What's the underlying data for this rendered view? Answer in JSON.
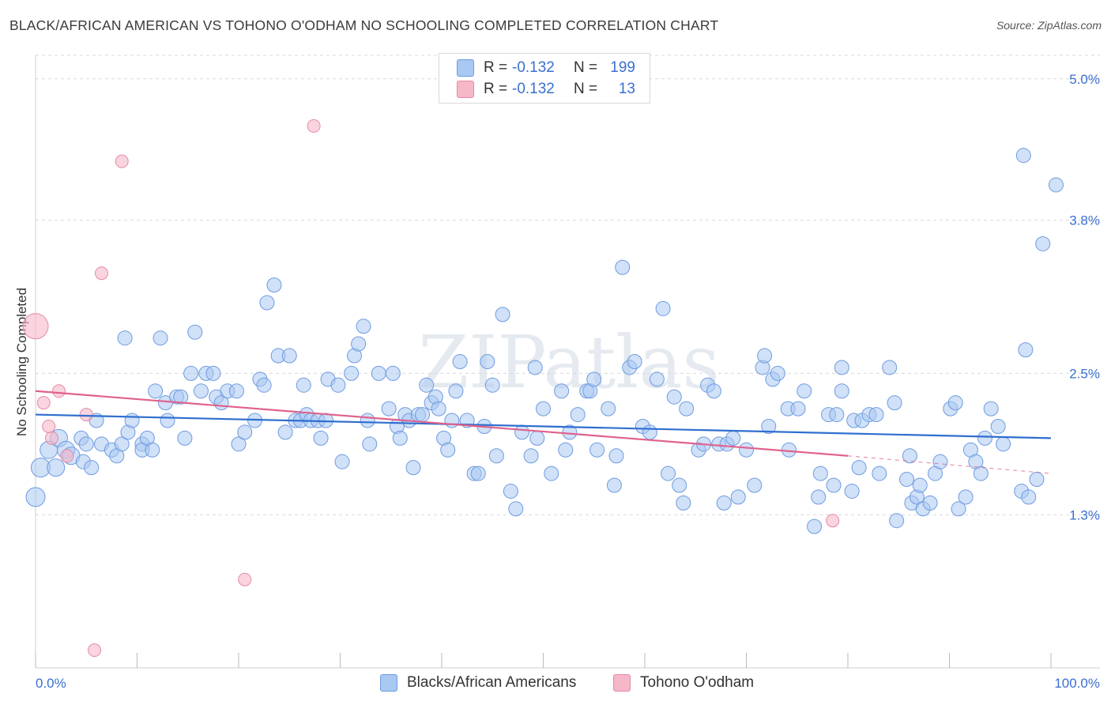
{
  "title": "BLACK/AFRICAN AMERICAN VS TOHONO O'ODHAM NO SCHOOLING COMPLETED CORRELATION CHART",
  "source": "Source: ZipAtlas.com",
  "watermark": "ZIPatlas",
  "legend": {
    "rows": [
      {
        "r_label": "R =",
        "r_value": "-0.132",
        "n_label": "N =",
        "n_value": "199",
        "color": "#a9c8f2"
      },
      {
        "r_label": "R =",
        "r_value": "-0.132",
        "n_label": "N =",
        "n_value": "13",
        "color": "#f6b8c9"
      }
    ]
  },
  "bottom_legend": [
    {
      "label": "Blacks/African Americans",
      "color": "#a9c8f2"
    },
    {
      "label": "Tohono O'odham",
      "color": "#f6b8c9"
    }
  ],
  "colors": {
    "blue_fill": "#a9c8f2",
    "blue_stroke": "#6f9be0",
    "blue_line": "#2f6fcf",
    "pink_fill": "#f6b8c9",
    "pink_stroke": "#e58aa6",
    "pink_line": "#e0628c",
    "tick_label": "#3a6fd1",
    "grid": "#d9d9d9"
  },
  "chart_data": {
    "type": "scatter",
    "title": "BLACK/AFRICAN AMERICAN VS TOHONO O'ODHAM NO SCHOOLING COMPLETED CORRELATION CHART",
    "xlabel": "",
    "ylabel": "No Schooling Completed",
    "xlim": [
      0,
      100
    ],
    "ylim": [
      0,
      5.2
    ],
    "x_tick_labels": [
      "0.0%",
      "100.0%"
    ],
    "y_ticks": [
      1.3,
      2.5,
      3.8,
      5.0
    ],
    "y_tick_labels": [
      "1.3%",
      "2.5%",
      "3.8%",
      "5.0%"
    ],
    "grid": "horizontal dashed",
    "legend_position": "top-center",
    "series": [
      {
        "name": "Blacks/African Americans",
        "points": [
          [
            0,
            1.45
          ],
          [
            0.5,
            1.7
          ],
          [
            1.3,
            1.85
          ],
          [
            2,
            1.7
          ],
          [
            2.3,
            1.95
          ],
          [
            3,
            1.85
          ],
          [
            3.5,
            1.8
          ],
          [
            4.5,
            1.95
          ],
          [
            4.7,
            1.75
          ],
          [
            5,
            1.9
          ],
          [
            5.5,
            1.7
          ],
          [
            6,
            2.1
          ],
          [
            6.5,
            1.9
          ],
          [
            7.5,
            1.85
          ],
          [
            8,
            1.8
          ],
          [
            8.5,
            1.9
          ],
          [
            9.1,
            2.0
          ],
          [
            8.8,
            2.8
          ],
          [
            9.5,
            2.1
          ],
          [
            10.5,
            1.9
          ],
          [
            10.5,
            1.85
          ],
          [
            11,
            1.95
          ],
          [
            11.5,
            1.85
          ],
          [
            11.8,
            2.35
          ],
          [
            12.3,
            2.8
          ],
          [
            12.8,
            2.25
          ],
          [
            13,
            2.1
          ],
          [
            13.9,
            2.3
          ],
          [
            14.3,
            2.3
          ],
          [
            14.7,
            1.95
          ],
          [
            15.3,
            2.5
          ],
          [
            15.7,
            2.85
          ],
          [
            16.3,
            2.35
          ],
          [
            16.8,
            2.5
          ],
          [
            17.5,
            2.5
          ],
          [
            17.8,
            2.3
          ],
          [
            18.3,
            2.25
          ],
          [
            18.9,
            2.35
          ],
          [
            19.8,
            2.35
          ],
          [
            20,
            1.9
          ],
          [
            20.6,
            2.0
          ],
          [
            21.6,
            2.1
          ],
          [
            22.1,
            2.45
          ],
          [
            22.5,
            2.4
          ],
          [
            22.8,
            3.1
          ],
          [
            23.5,
            3.25
          ],
          [
            23.9,
            2.65
          ],
          [
            24.6,
            2.0
          ],
          [
            25,
            2.65
          ],
          [
            25.6,
            2.1
          ],
          [
            26.1,
            2.1
          ],
          [
            26.7,
            2.15
          ],
          [
            26.4,
            2.4
          ],
          [
            27.1,
            2.1
          ],
          [
            27.8,
            2.1
          ],
          [
            28.1,
            1.95
          ],
          [
            28.6,
            2.1
          ],
          [
            28.8,
            2.45
          ],
          [
            29.8,
            2.4
          ],
          [
            30.2,
            1.75
          ],
          [
            31.1,
            2.5
          ],
          [
            31.4,
            2.65
          ],
          [
            31.8,
            2.75
          ],
          [
            32.3,
            2.9
          ],
          [
            32.7,
            2.1
          ],
          [
            32.9,
            1.9
          ],
          [
            33.8,
            2.5
          ],
          [
            34.8,
            2.2
          ],
          [
            35.2,
            2.5
          ],
          [
            35.6,
            2.05
          ],
          [
            35.9,
            1.95
          ],
          [
            36.4,
            2.15
          ],
          [
            36.8,
            2.1
          ],
          [
            37.2,
            1.7
          ],
          [
            37.7,
            2.15
          ],
          [
            38.1,
            2.15
          ],
          [
            38.5,
            2.4
          ],
          [
            39,
            2.25
          ],
          [
            39.4,
            2.3
          ],
          [
            39.7,
            2.2
          ],
          [
            40.2,
            1.95
          ],
          [
            40.6,
            1.85
          ],
          [
            41,
            2.1
          ],
          [
            41.4,
            2.35
          ],
          [
            41.8,
            2.6
          ],
          [
            42.5,
            2.1
          ],
          [
            43.2,
            1.65
          ],
          [
            43.6,
            1.65
          ],
          [
            44.2,
            2.05
          ],
          [
            44.5,
            2.6
          ],
          [
            45,
            2.4
          ],
          [
            45.4,
            1.8
          ],
          [
            46,
            3.0
          ],
          [
            46.8,
            1.5
          ],
          [
            47.3,
            1.35
          ],
          [
            47.9,
            2.0
          ],
          [
            48.8,
            1.8
          ],
          [
            49.2,
            2.55
          ],
          [
            49.4,
            1.95
          ],
          [
            50,
            2.2
          ],
          [
            50.8,
            1.65
          ],
          [
            51.8,
            2.35
          ],
          [
            52.2,
            1.85
          ],
          [
            52.6,
            2.0
          ],
          [
            53.4,
            2.15
          ],
          [
            54.3,
            2.35
          ],
          [
            54.6,
            2.35
          ],
          [
            55,
            2.45
          ],
          [
            55.3,
            1.85
          ],
          [
            56.4,
            2.2
          ],
          [
            57,
            1.55
          ],
          [
            57.2,
            1.8
          ],
          [
            57.8,
            3.4
          ],
          [
            58.5,
            2.55
          ],
          [
            59,
            2.6
          ],
          [
            59.8,
            2.05
          ],
          [
            60.5,
            2.0
          ],
          [
            61.2,
            2.45
          ],
          [
            61.8,
            3.05
          ],
          [
            62.3,
            1.65
          ],
          [
            62.9,
            2.3
          ],
          [
            63.4,
            1.55
          ],
          [
            63.8,
            1.4
          ],
          [
            64.1,
            2.2
          ],
          [
            65.3,
            1.85
          ],
          [
            65.8,
            1.9
          ],
          [
            66.2,
            2.4
          ],
          [
            66.8,
            2.35
          ],
          [
            67.3,
            1.9
          ],
          [
            67.8,
            1.4
          ],
          [
            68.1,
            1.9
          ],
          [
            68.7,
            1.95
          ],
          [
            69.2,
            1.45
          ],
          [
            70,
            1.85
          ],
          [
            70.8,
            1.55
          ],
          [
            71.6,
            2.55
          ],
          [
            71.8,
            2.65
          ],
          [
            72.2,
            2.05
          ],
          [
            72.6,
            2.45
          ],
          [
            73.1,
            2.5
          ],
          [
            74.1,
            2.2
          ],
          [
            74.2,
            1.85
          ],
          [
            75.1,
            2.2
          ],
          [
            75.7,
            2.35
          ],
          [
            76.7,
            1.2
          ],
          [
            77.1,
            1.45
          ],
          [
            77.3,
            1.65
          ],
          [
            78.1,
            2.15
          ],
          [
            78.6,
            1.55
          ],
          [
            78.9,
            2.15
          ],
          [
            79.4,
            2.35
          ],
          [
            79.4,
            2.55
          ],
          [
            80.4,
            1.5
          ],
          [
            80.6,
            2.1
          ],
          [
            81.1,
            1.7
          ],
          [
            81.4,
            2.1
          ],
          [
            82.1,
            2.15
          ],
          [
            82.8,
            2.15
          ],
          [
            83.1,
            1.65
          ],
          [
            84.1,
            2.55
          ],
          [
            84.6,
            2.25
          ],
          [
            84.8,
            1.25
          ],
          [
            85.8,
            1.6
          ],
          [
            86.1,
            1.8
          ],
          [
            86.3,
            1.4
          ],
          [
            86.8,
            1.45
          ],
          [
            87.1,
            1.55
          ],
          [
            87.4,
            1.35
          ],
          [
            88.1,
            1.4
          ],
          [
            88.6,
            1.65
          ],
          [
            89.1,
            1.75
          ],
          [
            90.1,
            2.2
          ],
          [
            90.6,
            2.25
          ],
          [
            90.9,
            1.35
          ],
          [
            91.6,
            1.45
          ],
          [
            92.1,
            1.85
          ],
          [
            92.6,
            1.75
          ],
          [
            93.1,
            1.65
          ],
          [
            93.5,
            1.95
          ],
          [
            94.1,
            2.2
          ],
          [
            94.8,
            2.05
          ],
          [
            95.3,
            1.9
          ],
          [
            97.1,
            1.5
          ],
          [
            97.5,
            2.7
          ],
          [
            97.3,
            4.35
          ],
          [
            97.8,
            1.45
          ],
          [
            98.6,
            1.6
          ],
          [
            99.2,
            3.6
          ],
          [
            100.5,
            4.1
          ]
        ]
      },
      {
        "name": "Tohono O'odham",
        "points": [
          [
            0,
            2.9
          ],
          [
            0.8,
            2.25
          ],
          [
            1.3,
            2.05
          ],
          [
            1.6,
            1.95
          ],
          [
            2.3,
            2.35
          ],
          [
            3.1,
            1.8
          ],
          [
            5,
            2.15
          ],
          [
            5.8,
            0.15
          ],
          [
            6.5,
            3.35
          ],
          [
            8.5,
            4.3
          ],
          [
            20.6,
            0.75
          ],
          [
            27.4,
            4.6
          ],
          [
            78.5,
            1.25
          ]
        ]
      }
    ],
    "trend_lines": [
      {
        "series": "Blacks/African Americans",
        "x": [
          0,
          100
        ],
        "y": [
          2.15,
          1.95
        ]
      },
      {
        "series": "Tohono O'odham",
        "x": [
          0,
          80
        ],
        "y": [
          2.35,
          1.8
        ],
        "dashed_extension_to": [
          100,
          1.65
        ]
      }
    ]
  }
}
